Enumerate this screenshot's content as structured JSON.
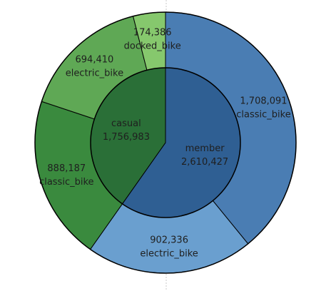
{
  "chart_data": {
    "type": "pie",
    "inner": [
      {
        "label": "member",
        "value": 2610427,
        "value_text": "2,610,427",
        "color": "#2f5f93"
      },
      {
        "label": "casual",
        "value": 1756983,
        "value_text": "1,756,983",
        "color": "#2a6f37"
      }
    ],
    "outer": [
      {
        "parent": "member",
        "label": "classic_bike",
        "value": 1708091,
        "value_text": "1,708,091",
        "color": "#4a7db3"
      },
      {
        "parent": "member",
        "label": "electric_bike",
        "value": 902336,
        "value_text": "902,336",
        "color": "#6a9fcf"
      },
      {
        "parent": "casual",
        "label": "classic_bike",
        "value": 888187,
        "value_text": "888,187",
        "color": "#3a8a3e"
      },
      {
        "parent": "casual",
        "label": "electric_bike",
        "value": 694410,
        "value_text": "694,410",
        "color": "#5fa855"
      },
      {
        "parent": "casual",
        "label": "docked_bike",
        "value": 174386,
        "value_text": "174,386",
        "color": "#86c86d"
      }
    ],
    "start_angle": "12 o'clock",
    "direction": "clockwise",
    "grid": false,
    "legend": "none"
  }
}
